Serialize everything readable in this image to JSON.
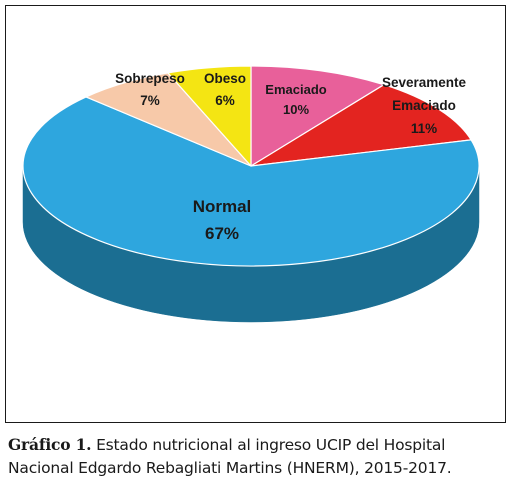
{
  "chart_data": {
    "type": "pie",
    "style": "3d",
    "slices": [
      {
        "name": "Emaciado",
        "label": "Emaciado",
        "value": 10,
        "display": "10%",
        "color": "#E8609A",
        "side": "#A84070"
      },
      {
        "name": "Severamente Emaciado",
        "label": [
          "Severamente",
          "Emaciado"
        ],
        "value": 11,
        "display": "11%",
        "color": "#E32420",
        "side": "#9E1A17"
      },
      {
        "name": "Normal",
        "label": "Normal",
        "value": 67,
        "display": "67%",
        "color": "#2EA6DE",
        "side": "#1B6E92"
      },
      {
        "name": "Sobrepeso",
        "label": "Sobrepeso",
        "value": 7,
        "display": "7%",
        "color": "#F7C9A9",
        "side": "#B9896A"
      },
      {
        "name": "Obeso",
        "label": "Obeso",
        "value": 6,
        "display": "6%",
        "color": "#F4E513",
        "side": "#A89D0C"
      }
    ],
    "title": "",
    "legend": "none"
  },
  "caption": {
    "label": "Gráfico 1.",
    "line1": " Estado nutricional al ingreso UCIP del Hospital",
    "line2": "Nacional Edgardo Rebagliati Martins (HNERM), 2015-2017."
  }
}
